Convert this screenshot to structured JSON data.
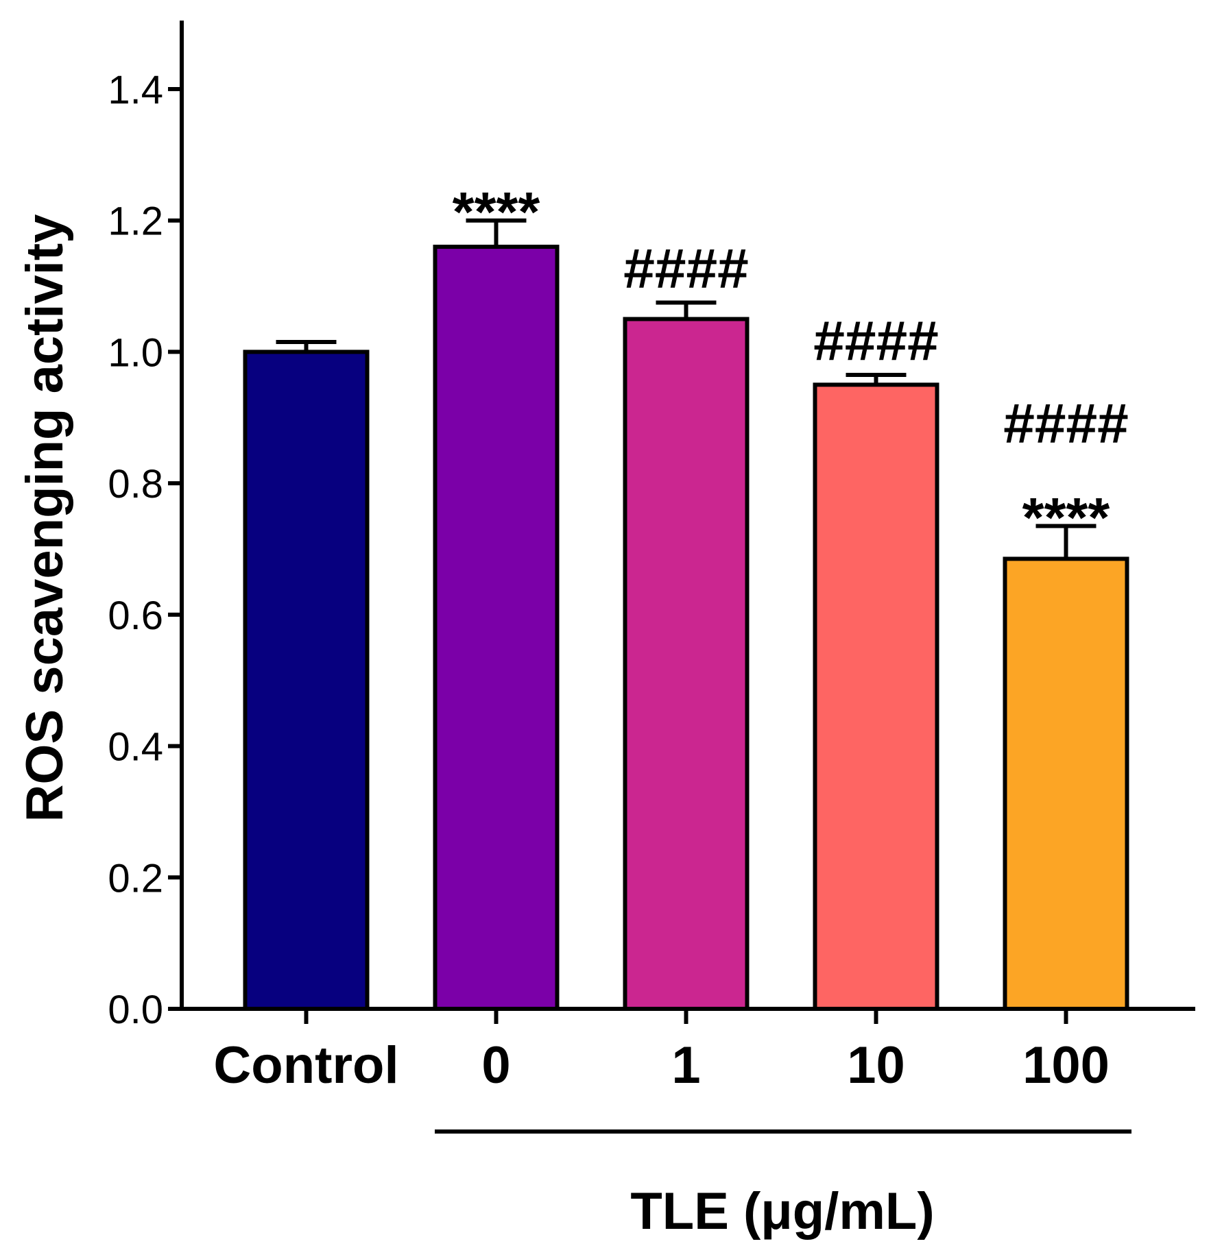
{
  "chart_data": {
    "type": "bar",
    "title": "",
    "ylabel": "ROS scavenging activity",
    "xlabel": "",
    "group_label": "TLE (μg/mL)",
    "ylim": [
      0,
      1.5
    ],
    "yticks": [
      0.0,
      0.2,
      0.4,
      0.6,
      0.8,
      1.0,
      1.2,
      1.4
    ],
    "ytick_labels": [
      "0.0",
      "0.2",
      "0.4",
      "0.6",
      "0.8",
      "1.0",
      "1.2",
      "1.4"
    ],
    "categories": [
      "Control",
      "0",
      "1",
      "10",
      "100"
    ],
    "values": [
      1.0,
      1.16,
      1.05,
      0.95,
      0.685
    ],
    "errors": [
      0.015,
      0.04,
      0.025,
      0.015,
      0.05
    ],
    "colors": [
      "#07007F",
      "#7B00A8",
      "#CB2690",
      "#FE6563",
      "#FCA525"
    ],
    "significance": [
      [],
      [
        "****"
      ],
      [
        "####"
      ],
      [
        "####"
      ],
      [
        "####",
        "****"
      ]
    ],
    "grid": false,
    "legend": "none"
  }
}
